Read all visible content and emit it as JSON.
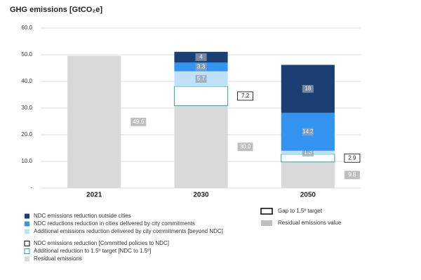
{
  "chart_data": {
    "type": "stacked-bar",
    "title": "GHG emissions [GtCO₂e]",
    "categories": [
      "2021",
      "2030",
      "2050"
    ],
    "series": [
      {
        "name": "NDC emissions reduction outside cities",
        "color": "#1b3f73",
        "values": [
          null,
          4,
          18
        ]
      },
      {
        "name": "NDC reductions reduction in cities delivered by city commitments",
        "color": "#3293f0",
        "values": [
          null,
          3.3,
          14.2
        ]
      },
      {
        "name": "Additional emissions reduction delivered by city commitments [beyond NDC]",
        "color": "#bfe0fb",
        "values": [
          null,
          5.7,
          1.3
        ]
      },
      {
        "name": "NDC emissions reduction [Committed policies to NDC]",
        "color": "#ffffff",
        "border": "#000000",
        "values": [
          null,
          null,
          null
        ]
      },
      {
        "name": "Additional reduction to 1.5º target [NDC to 1.5º]",
        "color": "#ffffff",
        "border": "#2aa8a0",
        "values": [
          null,
          7.2,
          2.9
        ],
        "label_position": "outside",
        "label_color": "#ffffff",
        "label_border": "#000000"
      },
      {
        "name": "Residual emissions",
        "color": "#d9d9d9",
        "values": [
          49.6,
          30.9,
          9.8
        ],
        "label_position": "outside",
        "label_color": "#bfbfbf"
      }
    ],
    "label_legend": [
      {
        "name": "Gap to 1.5º target",
        "color": "#ffffff",
        "border": "#000000"
      },
      {
        "name": "Residual emissions value",
        "color": "#bfbfbf"
      }
    ],
    "ylim": [
      0,
      60
    ],
    "yticks": [
      {
        "value": 0,
        "label": "-"
      },
      {
        "value": 10,
        "label": "10.0"
      },
      {
        "value": 20,
        "label": "20.0"
      },
      {
        "value": 30,
        "label": "30.0"
      },
      {
        "value": 40,
        "label": "40.0"
      },
      {
        "value": 50,
        "label": "50.0"
      },
      {
        "value": 60,
        "label": "60.0"
      }
    ],
    "grid": true
  }
}
